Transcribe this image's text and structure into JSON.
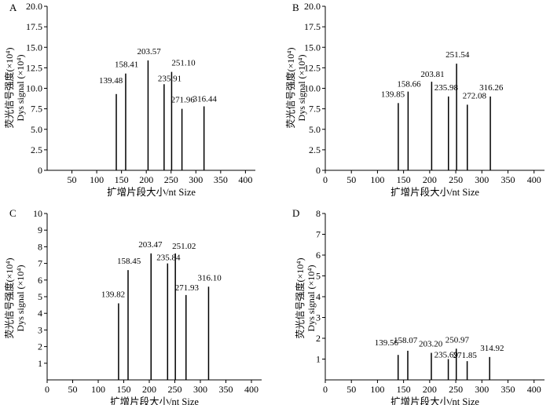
{
  "chart_data": [
    {
      "type": "bar",
      "panel": "A",
      "xlabel": "扩增片段大小/nt  Size",
      "ylabel_cn": "荧光信号强度(×10⁴)",
      "ylabel_en": "Dys signal (×10⁴)",
      "xlim": [
        0,
        420
      ],
      "ylim": [
        0,
        20
      ],
      "xticks": [
        "50",
        "100",
        "150",
        "200",
        "250",
        "300",
        "350",
        "400"
      ],
      "yticks": [
        "0",
        "2.5",
        "5.0",
        "7.5",
        "10.0",
        "12.5",
        "15.0",
        "17.5",
        "20.0"
      ],
      "peaks": [
        {
          "x": 139.48,
          "y": 9.3,
          "label": "139.48"
        },
        {
          "x": 158.41,
          "y": 11.8,
          "label": "158.41"
        },
        {
          "x": 203.57,
          "y": 13.4,
          "label": "203.57"
        },
        {
          "x": 235.91,
          "y": 10.5,
          "label": "235.91"
        },
        {
          "x": 251.1,
          "y": 12.0,
          "label": "251.10"
        },
        {
          "x": 271.96,
          "y": 7.5,
          "label": "271.96"
        },
        {
          "x": 316.44,
          "y": 7.8,
          "label": "316.44"
        }
      ]
    },
    {
      "type": "bar",
      "panel": "B",
      "xlabel": "扩增片段大小/nt  Size",
      "ylabel_cn": "荧光信号强度(×10⁴)",
      "ylabel_en": "Dys signal (×10⁴)",
      "xlim": [
        0,
        420
      ],
      "ylim": [
        0,
        20
      ],
      "xticks": [
        "0",
        "50",
        "100",
        "150",
        "200",
        "250",
        "300",
        "350",
        "400"
      ],
      "yticks": [
        "0",
        "2.5",
        "5.0",
        "7.5",
        "10.0",
        "12.5",
        "15.0",
        "17.5",
        "20.0"
      ],
      "peaks": [
        {
          "x": 139.85,
          "y": 8.2,
          "label": "139.85"
        },
        {
          "x": 158.66,
          "y": 9.6,
          "label": "158.66"
        },
        {
          "x": 203.81,
          "y": 10.8,
          "label": "203.81"
        },
        {
          "x": 235.98,
          "y": 9.0,
          "label": "235.98"
        },
        {
          "x": 251.54,
          "y": 13.0,
          "label": "251.54"
        },
        {
          "x": 272.08,
          "y": 8.0,
          "label": "272.08"
        },
        {
          "x": 316.26,
          "y": 9.0,
          "label": "316.26"
        }
      ]
    },
    {
      "type": "bar",
      "panel": "C",
      "xlabel": "扩增片段大小/nt  Size",
      "ylabel_cn": "荧光信号强度(×10⁴)",
      "ylabel_en": "Dys signal (×10⁴)",
      "xlim": [
        0,
        420
      ],
      "ylim": [
        0,
        10
      ],
      "xticks": [
        "0",
        "50",
        "100",
        "150",
        "200",
        "250",
        "300",
        "350",
        "400"
      ],
      "yticks": [
        "1",
        "2",
        "3",
        "4",
        "5",
        "6",
        "7",
        "8",
        "9",
        "10"
      ],
      "peaks": [
        {
          "x": 139.82,
          "y": 4.6,
          "label": "139.82"
        },
        {
          "x": 158.45,
          "y": 6.6,
          "label": "158.45"
        },
        {
          "x": 203.47,
          "y": 7.6,
          "label": "203.47"
        },
        {
          "x": 235.84,
          "y": 7.0,
          "label": "235.84"
        },
        {
          "x": 251.02,
          "y": 7.6,
          "label": "251.02"
        },
        {
          "x": 271.93,
          "y": 5.1,
          "label": "271.93"
        },
        {
          "x": 316.1,
          "y": 5.6,
          "label": "316.10"
        }
      ]
    },
    {
      "type": "bar",
      "panel": "D",
      "xlabel": "扩增片段大小/nt  Size",
      "ylabel_cn": "荧光信号强度(×10⁴)",
      "ylabel_en": "Dys signal (×10⁴)",
      "xlim": [
        0,
        420
      ],
      "ylim": [
        0,
        8
      ],
      "xticks": [
        "0",
        "50",
        "100",
        "150",
        "200",
        "250",
        "300",
        "350",
        "400"
      ],
      "yticks": [
        "1",
        "2",
        "3",
        "4",
        "5",
        "6",
        "7",
        "8"
      ],
      "peaks": [
        {
          "x": 139.56,
          "y": 1.2,
          "label": "139.56"
        },
        {
          "x": 158.07,
          "y": 1.4,
          "label": "158.07"
        },
        {
          "x": 203.2,
          "y": 1.3,
          "label": "203.20"
        },
        {
          "x": 235.69,
          "y": 1.0,
          "label": "235.69"
        },
        {
          "x": 250.97,
          "y": 1.5,
          "label": "250.97"
        },
        {
          "x": 271.85,
          "y": 0.9,
          "label": "271.85"
        },
        {
          "x": 314.92,
          "y": 1.1,
          "label": "314.92"
        }
      ]
    }
  ]
}
